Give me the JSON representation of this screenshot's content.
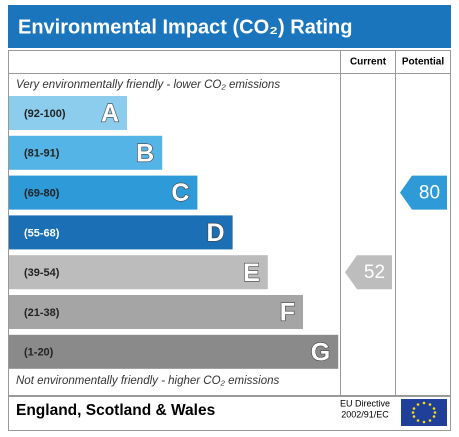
{
  "title": "Environmental Impact (CO₂) Rating",
  "columns": {
    "current": "Current",
    "potential": "Potential"
  },
  "top_note": "Very environmentally friendly - lower CO₂ emissions",
  "bottom_note": "Not environmentally friendly - higher CO₂ emissions",
  "bands": [
    {
      "range": "(92-100)",
      "letter": "A",
      "color": "#8ccdee"
    },
    {
      "range": "(81-91)",
      "letter": "B",
      "color": "#55b4e6"
    },
    {
      "range": "(69-80)",
      "letter": "C",
      "color": "#2e9ad8"
    },
    {
      "range": "(55-68)",
      "letter": "D",
      "color": "#1a6fb5"
    },
    {
      "range": "(39-54)",
      "letter": "E",
      "color": "#bcbcbc"
    },
    {
      "range": "(21-38)",
      "letter": "F",
      "color": "#a5a5a5"
    },
    {
      "range": "(1-20)",
      "letter": "G",
      "color": "#8a8a8a"
    }
  ],
  "current": {
    "value": 52,
    "color": "#bdbdbd"
  },
  "potential": {
    "value": 80,
    "color": "#2e9ad8"
  },
  "footer": {
    "region": "England, Scotland & Wales",
    "directive_line1": "EU Directive",
    "directive_line2": "2002/91/EC"
  }
}
